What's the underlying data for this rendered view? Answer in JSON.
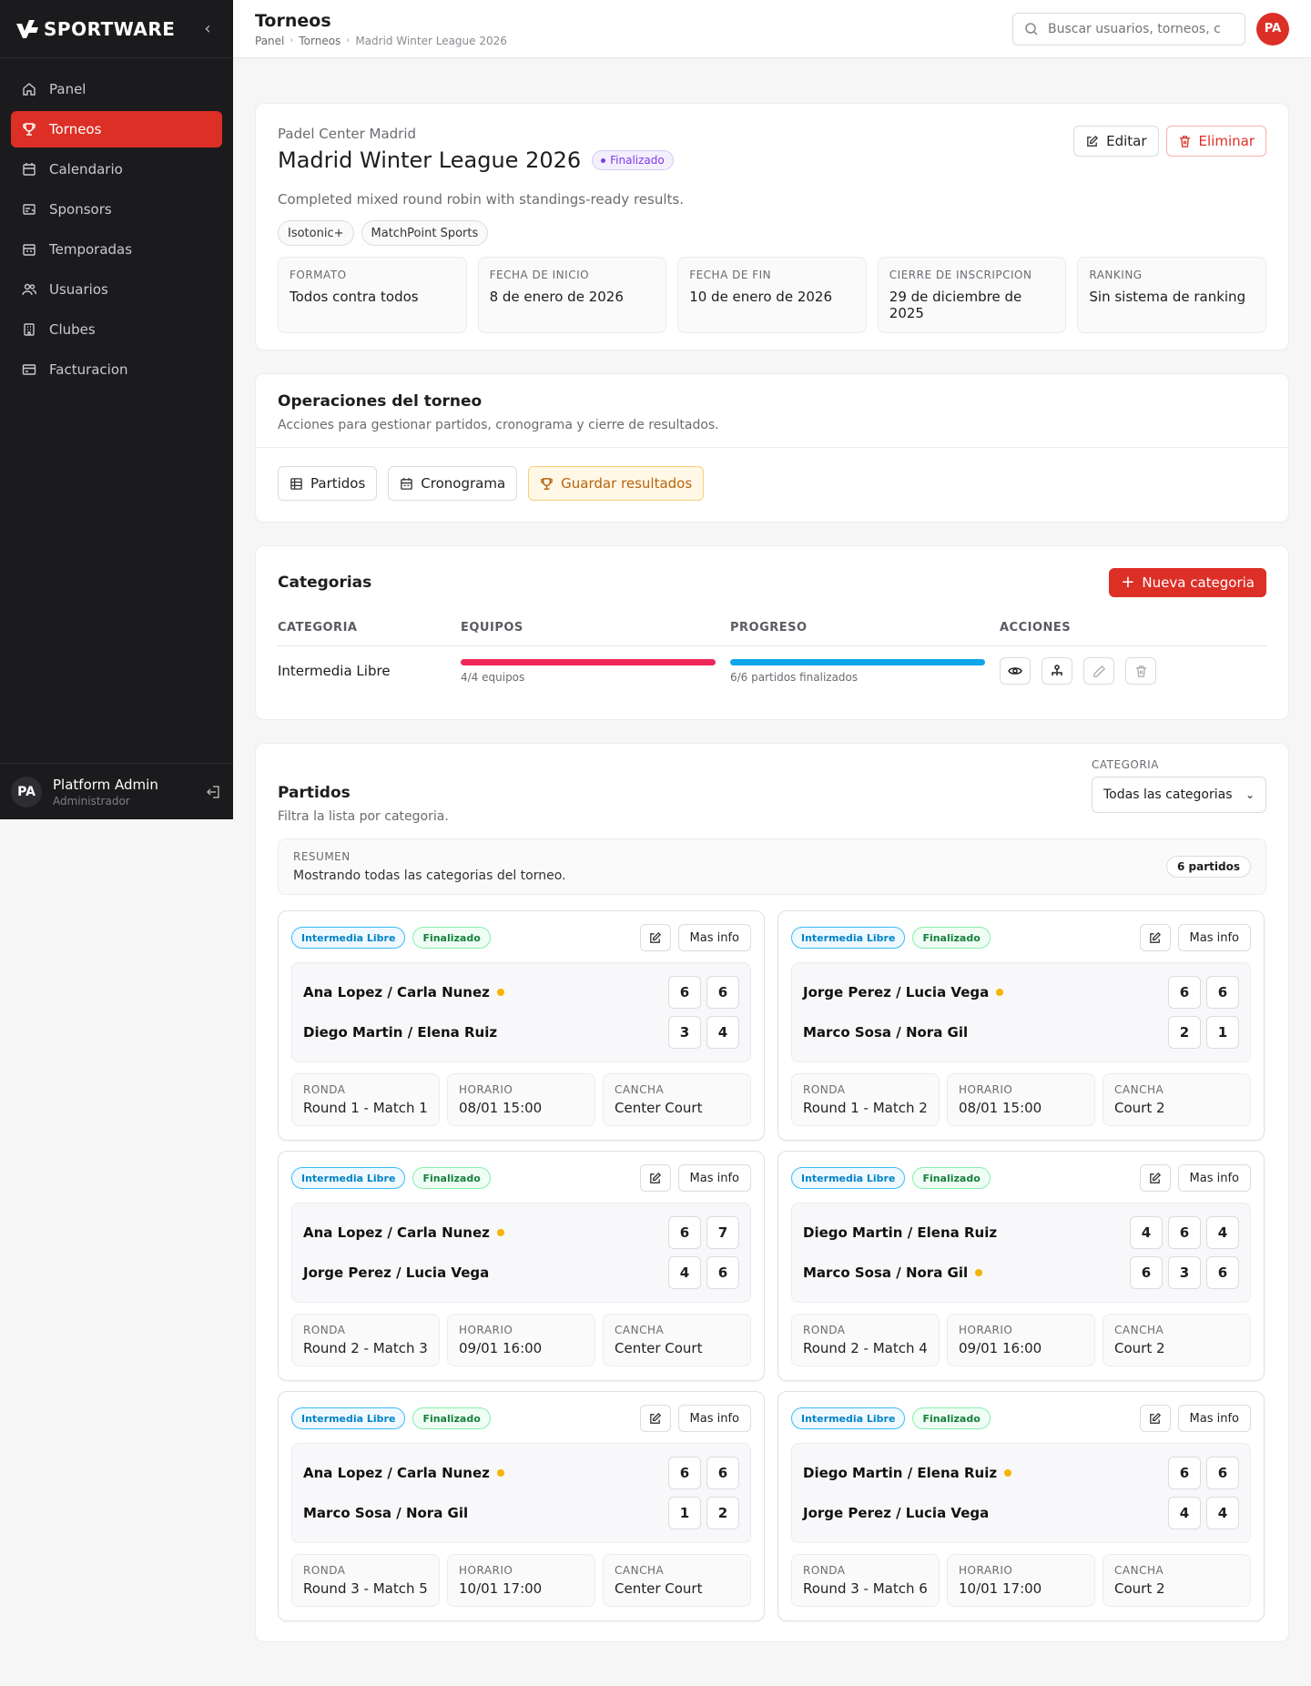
{
  "sidebar": {
    "brand": "SPORTWARE",
    "items": [
      {
        "label": "Panel",
        "icon": "home-icon"
      },
      {
        "label": "Torneos",
        "icon": "trophy-icon",
        "active": true
      },
      {
        "label": "Calendario",
        "icon": "calendar-icon"
      },
      {
        "label": "Sponsors",
        "icon": "sponsor-icon"
      },
      {
        "label": "Temporadas",
        "icon": "season-icon"
      },
      {
        "label": "Usuarios",
        "icon": "users-icon"
      },
      {
        "label": "Clubes",
        "icon": "building-icon"
      },
      {
        "label": "Facturacion",
        "icon": "billing-icon"
      }
    ],
    "user": {
      "initials": "PA",
      "name": "Platform Admin",
      "role": "Administrador"
    }
  },
  "header": {
    "title": "Torneos",
    "breadcrumb": [
      "Panel",
      "Torneos",
      "Madrid Winter League 2026"
    ],
    "search_placeholder": "Buscar usuarios, torneos, cl",
    "avatar": "PA"
  },
  "tournament": {
    "club": "Padel Center Madrid",
    "name": "Madrid Winter League 2026",
    "status": "Finalizado",
    "description": "Completed mixed round robin with standings-ready results.",
    "sponsors": [
      "Isotonic+",
      "MatchPoint Sports"
    ],
    "edit_label": "Editar",
    "delete_label": "Eliminar",
    "details": [
      {
        "label": "FORMATO",
        "value": "Todos contra todos"
      },
      {
        "label": "FECHA DE INICIO",
        "value": "8 de enero de 2026"
      },
      {
        "label": "FECHA DE FIN",
        "value": "10 de enero de 2026"
      },
      {
        "label": "CIERRE DE INSCRIPCION",
        "value": "29 de diciembre de 2025"
      },
      {
        "label": "RANKING",
        "value": "Sin sistema de ranking"
      }
    ]
  },
  "operations": {
    "title": "Operaciones del torneo",
    "subtitle": "Acciones para gestionar partidos, cronograma y cierre de resultados.",
    "buttons": [
      "Partidos",
      "Cronograma",
      "Guardar resultados"
    ]
  },
  "categories": {
    "title": "Categorias",
    "new_label": "Nueva categoria",
    "columns": [
      "CATEGORIA",
      "EQUIPOS",
      "PROGRESO",
      "ACCIONES"
    ],
    "rows": [
      {
        "name": "Intermedia Libre",
        "teams_text": "4/4 equipos",
        "teams_progress": 1.0,
        "progress_text": "6/6 partidos finalizados",
        "progress": 1.0
      }
    ]
  },
  "matches": {
    "title": "Partidos",
    "subtitle": "Filtra la lista por categoria.",
    "filter_label": "CATEGORIA",
    "filter_value": "Todas las categorias",
    "summary_label": "RESUMEN",
    "summary_text": "Mostrando todas las categorias del torneo.",
    "count": "6 partidos",
    "more_label": "Mas info",
    "meta_labels": [
      "RONDA",
      "HORARIO",
      "CANCHA"
    ],
    "list": [
      {
        "category": "Intermedia Libre",
        "status": "Finalizado",
        "teams": [
          {
            "name": "Ana Lopez / Carla Nunez",
            "sets": [
              "6",
              "6"
            ],
            "winner": true
          },
          {
            "name": "Diego Martin / Elena Ruiz",
            "sets": [
              "3",
              "4"
            ],
            "winner": false
          }
        ],
        "round": "Round 1 - Match 1",
        "time": "08/01 15:00",
        "court": "Center Court"
      },
      {
        "category": "Intermedia Libre",
        "status": "Finalizado",
        "teams": [
          {
            "name": "Jorge Perez / Lucia Vega",
            "sets": [
              "6",
              "6"
            ],
            "winner": true
          },
          {
            "name": "Marco Sosa / Nora Gil",
            "sets": [
              "2",
              "1"
            ],
            "winner": false
          }
        ],
        "round": "Round 1 - Match 2",
        "time": "08/01 15:00",
        "court": "Court 2"
      },
      {
        "category": "Intermedia Libre",
        "status": "Finalizado",
        "teams": [
          {
            "name": "Ana Lopez / Carla Nunez",
            "sets": [
              "6",
              "7"
            ],
            "winner": true
          },
          {
            "name": "Jorge Perez / Lucia Vega",
            "sets": [
              "4",
              "6"
            ],
            "winner": false
          }
        ],
        "round": "Round 2 - Match 3",
        "time": "09/01 16:00",
        "court": "Center Court"
      },
      {
        "category": "Intermedia Libre",
        "status": "Finalizado",
        "teams": [
          {
            "name": "Diego Martin / Elena Ruiz",
            "sets": [
              "4",
              "6",
              "4"
            ],
            "winner": false
          },
          {
            "name": "Marco Sosa / Nora Gil",
            "sets": [
              "6",
              "3",
              "6"
            ],
            "winner": true
          }
        ],
        "round": "Round 2 - Match 4",
        "time": "09/01 16:00",
        "court": "Court 2"
      },
      {
        "category": "Intermedia Libre",
        "status": "Finalizado",
        "teams": [
          {
            "name": "Ana Lopez / Carla Nunez",
            "sets": [
              "6",
              "6"
            ],
            "winner": true
          },
          {
            "name": "Marco Sosa / Nora Gil",
            "sets": [
              "1",
              "2"
            ],
            "winner": false
          }
        ],
        "round": "Round 3 - Match 5",
        "time": "10/01 17:00",
        "court": "Center Court"
      },
      {
        "category": "Intermedia Libre",
        "status": "Finalizado",
        "teams": [
          {
            "name": "Diego Martin / Elena Ruiz",
            "sets": [
              "6",
              "6"
            ],
            "winner": true
          },
          {
            "name": "Jorge Perez / Lucia Vega",
            "sets": [
              "4",
              "4"
            ],
            "winner": false
          }
        ],
        "round": "Round 3 - Match 6",
        "time": "10/01 17:00",
        "court": "Court 2"
      }
    ]
  }
}
